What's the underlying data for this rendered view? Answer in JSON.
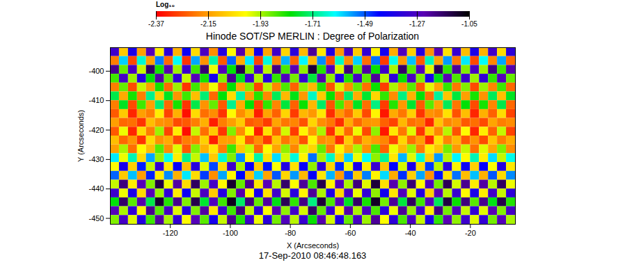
{
  "chart_data": {
    "type": "heatmap",
    "title": "Hinode SOT/SP MERLIN : Degree of Polarization",
    "x_label": "X (Arcseconds)",
    "y_label": "Y (Arcseconds)",
    "caption": "17-Sep-2010 08:46:48.163",
    "xlim": [
      -140,
      -5
    ],
    "ylim": [
      -452,
      -392
    ],
    "xticks": [
      -120,
      -100,
      -80,
      -60,
      -40,
      -20
    ],
    "yticks": [
      -450,
      -440,
      -430,
      -420,
      -410,
      -400
    ],
    "colorbar": {
      "label": "Log₁₀",
      "range": [
        -2.37,
        -1.05
      ],
      "ticks": [
        -2.37,
        -2.15,
        -1.93,
        -1.71,
        -1.49,
        -1.27,
        -1.05
      ]
    },
    "x": [
      -138.5,
      -135.5,
      -132.5,
      -129.5,
      -126.5,
      -123.5,
      -120.5,
      -117.5,
      -114.5,
      -111.5,
      -108.5,
      -105.5,
      -102.5,
      -99.5,
      -96.5,
      -93.5,
      -90.5,
      -87.5,
      -84.5,
      -81.5,
      -78.5,
      -75.5,
      -72.5,
      -69.5,
      -66.5,
      -63.5,
      -60.5,
      -57.5,
      -54.5,
      -51.5,
      -48.5,
      -45.5,
      -42.5,
      -39.5,
      -36.5,
      -33.5,
      -30.5,
      -27.5,
      -24.5,
      -21.5,
      -18.5,
      -15.5,
      -12.5,
      -9.5,
      -6.5
    ],
    "y": [
      -393.5,
      -396.5,
      -399.5,
      -402.5,
      -405.5,
      -408.5,
      -411.5,
      -414.5,
      -417.5,
      -420.5,
      -423.5,
      -426.5,
      -429.5,
      -432.5,
      -435.5,
      -438.5,
      -441.5,
      -444.5,
      -447.5,
      -450.5
    ],
    "values": [
      [
        -1.3,
        -2.08,
        -1.37,
        -2.15,
        -1.25,
        -2.02,
        -1.33,
        -2.12,
        -1.4,
        -2.05,
        -1.27,
        -2.18,
        -1.35,
        -2.0,
        -1.23,
        -2.1,
        -1.38,
        -2.14,
        -1.29,
        -2.06,
        -1.34,
        -2.11,
        -1.21,
        -2.03,
        -1.36,
        -2.16,
        -1.28,
        -2.08,
        -1.32,
        -2.01,
        -1.39,
        -2.13,
        -1.26,
        -2.07,
        -1.35,
        -2.17,
        -1.24,
        -2.04,
        -1.31,
        -2.1,
        -1.37,
        -2.12,
        -1.29,
        -2.05,
        -1.33
      ],
      [
        -2.2,
        -1.58,
        -2.27,
        -1.65,
        -2.15,
        -1.52,
        -2.23,
        -1.62,
        -2.3,
        -1.55,
        -2.17,
        -1.68,
        -2.25,
        -1.5,
        -2.13,
        -1.6,
        -2.28,
        -1.64,
        -2.19,
        -1.56,
        -2.24,
        -1.61,
        -2.11,
        -1.53,
        -2.26,
        -1.66,
        -2.18,
        -1.58,
        -2.22,
        -1.51,
        -2.29,
        -1.63,
        -2.16,
        -1.57,
        -2.25,
        -1.67,
        -2.14,
        -1.54,
        -2.21,
        -1.6,
        -2.27,
        -1.62,
        -2.19,
        -1.55,
        -2.23
      ],
      [
        -1.2,
        -1.88,
        -1.27,
        -1.95,
        -1.15,
        -1.82,
        -1.23,
        -1.92,
        -1.3,
        -1.85,
        -1.17,
        -1.98,
        -1.25,
        -1.8,
        -1.13,
        -1.9,
        -1.28,
        -1.94,
        -1.19,
        -1.86,
        -1.24,
        -1.91,
        -1.11,
        -1.83,
        -1.26,
        -1.96,
        -1.18,
        -1.88,
        -1.22,
        -1.81,
        -1.29,
        -1.93,
        -1.16,
        -1.87,
        -1.25,
        -1.97,
        -1.14,
        -1.84,
        -1.21,
        -1.9,
        -1.27,
        -1.92,
        -1.19,
        -1.85,
        -1.23
      ],
      [
        -1.85,
        -1.28,
        -1.92,
        -1.35,
        -1.8,
        -1.22,
        -1.88,
        -1.32,
        -1.95,
        -1.25,
        -1.82,
        -1.38,
        -1.9,
        -1.2,
        -1.78,
        -1.3,
        -1.93,
        -1.34,
        -1.84,
        -1.26,
        -1.89,
        -1.31,
        -1.76,
        -1.23,
        -1.91,
        -1.36,
        -1.83,
        -1.28,
        -1.87,
        -1.21,
        -1.94,
        -1.33,
        -1.81,
        -1.27,
        -1.9,
        -1.37,
        -1.79,
        -1.24,
        -1.86,
        -1.3,
        -1.92,
        -1.32,
        -1.84,
        -1.25,
        -1.88
      ],
      [
        -2.2,
        -1.88,
        -2.27,
        -1.95,
        -2.15,
        -1.82,
        -2.23,
        -1.92,
        -2.3,
        -1.85,
        -2.17,
        -1.98,
        -2.25,
        -1.8,
        -2.13,
        -1.9,
        -2.28,
        -1.94,
        -2.19,
        -1.86,
        -2.24,
        -1.91,
        -2.11,
        -1.83,
        -2.26,
        -1.96,
        -2.18,
        -1.88,
        -2.22,
        -1.81,
        -2.29,
        -1.93,
        -2.16,
        -1.87,
        -2.25,
        -1.97,
        -2.14,
        -1.84,
        -2.21,
        -1.9,
        -2.27,
        -1.92,
        -2.19,
        -1.85,
        -2.23
      ],
      [
        -1.75,
        -2.13,
        -1.82,
        -2.2,
        -1.7,
        -2.07,
        -1.78,
        -2.17,
        -1.85,
        -2.1,
        -1.72,
        -2.23,
        -1.8,
        -2.05,
        -1.68,
        -2.15,
        -1.83,
        -2.19,
        -1.74,
        -2.11,
        -1.79,
        -2.16,
        -1.66,
        -2.08,
        -1.81,
        -2.21,
        -1.73,
        -2.13,
        -1.77,
        -2.06,
        -1.84,
        -2.18,
        -1.71,
        -2.12,
        -1.8,
        -2.22,
        -1.69,
        -2.09,
        -1.76,
        -2.15,
        -1.82,
        -2.17,
        -1.74,
        -2.1,
        -1.78
      ],
      [
        -2.2,
        -1.78,
        -2.27,
        -1.85,
        -2.15,
        -1.72,
        -2.23,
        -1.82,
        -2.3,
        -1.75,
        -2.17,
        -1.88,
        -2.25,
        -1.7,
        -2.13,
        -1.8,
        -2.28,
        -1.84,
        -2.19,
        -1.76,
        -2.24,
        -1.81,
        -2.11,
        -1.73,
        -2.26,
        -1.86,
        -2.18,
        -1.78,
        -2.22,
        -1.71,
        -2.29,
        -1.83,
        -2.16,
        -1.77,
        -2.25,
        -1.87,
        -2.14,
        -1.74,
        -2.21,
        -1.8,
        -2.27,
        -1.82,
        -2.19,
        -1.75,
        -2.23
      ],
      [
        -2.25,
        -2.08,
        -2.32,
        -2.15,
        -2.2,
        -2.02,
        -2.28,
        -2.12,
        -2.35,
        -2.05,
        -2.22,
        -2.18,
        -2.3,
        -2.0,
        -2.18,
        -2.1,
        -2.33,
        -2.14,
        -2.24,
        -2.06,
        -2.29,
        -2.11,
        -2.16,
        -2.03,
        -2.31,
        -2.16,
        -2.23,
        -2.08,
        -2.27,
        -2.01,
        -2.34,
        -2.13,
        -2.21,
        -2.07,
        -2.3,
        -2.17,
        -2.19,
        -2.04,
        -2.26,
        -2.1,
        -2.32,
        -2.12,
        -2.24,
        -2.05,
        -2.28
      ],
      [
        -2.15,
        -2.23,
        -2.22,
        -2.3,
        -2.1,
        -2.17,
        -2.18,
        -2.27,
        -2.25,
        -2.2,
        -2.12,
        -2.33,
        -2.2,
        -2.15,
        -2.08,
        -2.25,
        -2.23,
        -2.29,
        -2.14,
        -2.21,
        -2.19,
        -2.26,
        -2.06,
        -2.18,
        -2.21,
        -2.31,
        -2.13,
        -2.23,
        -2.17,
        -2.16,
        -2.24,
        -2.28,
        -2.11,
        -2.22,
        -2.2,
        -2.32,
        -2.09,
        -2.19,
        -2.16,
        -2.25,
        -2.22,
        -2.27,
        -2.14,
        -2.2,
        -2.18
      ],
      [
        -2.25,
        -1.98,
        -2.32,
        -2.05,
        -2.2,
        -1.92,
        -2.28,
        -2.02,
        -2.35,
        -1.95,
        -2.22,
        -2.08,
        -2.3,
        -1.9,
        -2.18,
        -2.0,
        -2.33,
        -2.04,
        -2.24,
        -1.96,
        -2.29,
        -2.01,
        -2.16,
        -1.93,
        -2.31,
        -2.06,
        -2.23,
        -1.98,
        -2.27,
        -1.91,
        -2.34,
        -2.03,
        -2.21,
        -1.97,
        -2.3,
        -2.07,
        -2.19,
        -1.94,
        -2.26,
        -2.0,
        -2.32,
        -2.02,
        -2.24,
        -1.95,
        -2.28
      ],
      [
        -2.1,
        -2.23,
        -2.17,
        -2.3,
        -2.05,
        -2.17,
        -2.13,
        -2.27,
        -2.2,
        -2.2,
        -2.07,
        -2.33,
        -2.15,
        -2.15,
        -2.03,
        -2.25,
        -2.18,
        -2.29,
        -2.09,
        -2.21,
        -2.14,
        -2.26,
        -2.01,
        -2.18,
        -2.16,
        -2.31,
        -2.08,
        -2.23,
        -2.12,
        -2.16,
        -2.19,
        -2.28,
        -2.06,
        -2.22,
        -2.15,
        -2.32,
        -2.04,
        -2.19,
        -2.11,
        -2.25,
        -2.17,
        -2.27,
        -2.09,
        -2.2,
        -2.13
      ],
      [
        -2.15,
        -1.93,
        -2.22,
        -2.0,
        -2.1,
        -1.87,
        -2.18,
        -1.97,
        -2.25,
        -1.9,
        -2.12,
        -2.03,
        -2.2,
        -1.85,
        -2.08,
        -1.95,
        -2.23,
        -1.99,
        -2.14,
        -1.91,
        -2.19,
        -1.96,
        -2.06,
        -1.88,
        -2.21,
        -2.01,
        -2.13,
        -1.93,
        -2.17,
        -1.86,
        -2.24,
        -1.98,
        -2.11,
        -1.92,
        -2.2,
        -2.02,
        -2.09,
        -1.89,
        -2.16,
        -1.95,
        -2.22,
        -1.97,
        -2.14,
        -1.9,
        -2.18
      ],
      [
        -1.6,
        -1.98,
        -1.67,
        -2.05,
        -1.55,
        -1.92,
        -1.63,
        -2.02,
        -1.7,
        -1.95,
        -1.57,
        -2.08,
        -1.65,
        -1.9,
        -1.53,
        -2.0,
        -1.68,
        -2.04,
        -1.59,
        -1.96,
        -1.64,
        -2.01,
        -1.51,
        -1.93,
        -1.66,
        -2.06,
        -1.58,
        -1.98,
        -1.62,
        -1.91,
        -1.69,
        -2.03,
        -1.56,
        -1.97,
        -1.65,
        -2.07,
        -1.54,
        -1.94,
        -1.61,
        -2.0,
        -1.67,
        -2.02,
        -1.59,
        -1.95,
        -1.63
      ],
      [
        -2.0,
        -1.38,
        -2.07,
        -1.45,
        -1.95,
        -1.32,
        -2.03,
        -1.42,
        -2.1,
        -1.35,
        -1.97,
        -1.48,
        -2.05,
        -1.3,
        -1.93,
        -1.4,
        -2.08,
        -1.44,
        -1.99,
        -1.36,
        -2.04,
        -1.41,
        -1.91,
        -1.33,
        -2.06,
        -1.46,
        -1.98,
        -1.38,
        -2.02,
        -1.31,
        -2.09,
        -1.43,
        -1.96,
        -1.37,
        -2.05,
        -1.47,
        -1.94,
        -1.34,
        -2.01,
        -1.4,
        -2.07,
        -1.42,
        -1.99,
        -1.35,
        -2.03
      ],
      [
        -1.5,
        -2.08,
        -1.57,
        -2.15,
        -1.45,
        -2.02,
        -1.53,
        -2.12,
        -1.6,
        -2.05,
        -1.47,
        -2.18,
        -1.55,
        -2.0,
        -1.43,
        -2.1,
        -1.58,
        -2.14,
        -1.49,
        -2.06,
        -1.54,
        -2.11,
        -1.41,
        -2.03,
        -1.56,
        -2.16,
        -1.48,
        -2.08,
        -1.52,
        -2.01,
        -1.59,
        -2.13,
        -1.46,
        -2.07,
        -1.55,
        -2.17,
        -1.44,
        -2.04,
        -1.51,
        -2.1,
        -1.57,
        -2.12,
        -1.49,
        -2.05,
        -1.53
      ],
      [
        -1.95,
        -1.18,
        -2.02,
        -1.25,
        -1.9,
        -1.12,
        -1.98,
        -1.22,
        -2.05,
        -1.15,
        -1.92,
        -1.28,
        -2.0,
        -1.1,
        -1.88,
        -1.2,
        -2.03,
        -1.24,
        -1.94,
        -1.16,
        -1.99,
        -1.21,
        -1.86,
        -1.13,
        -2.01,
        -1.26,
        -1.93,
        -1.18,
        -1.97,
        -1.11,
        -2.04,
        -1.23,
        -1.91,
        -1.17,
        -2.0,
        -1.27,
        -1.89,
        -1.14,
        -1.96,
        -1.2,
        -2.02,
        -1.22,
        -1.94,
        -1.15,
        -1.98
      ],
      [
        -1.3,
        -1.98,
        -1.37,
        -2.05,
        -1.25,
        -1.92,
        -1.33,
        -2.02,
        -1.4,
        -1.95,
        -1.27,
        -2.08,
        -1.35,
        -1.9,
        -1.23,
        -2.0,
        -1.38,
        -2.04,
        -1.29,
        -1.96,
        -1.34,
        -2.01,
        -1.21,
        -1.93,
        -1.36,
        -2.06,
        -1.28,
        -1.98,
        -1.32,
        -1.91,
        -1.39,
        -2.03,
        -1.26,
        -1.97,
        -1.35,
        -2.07,
        -1.24,
        -1.94,
        -1.31,
        -2.0,
        -1.37,
        -2.02,
        -1.29,
        -1.95,
        -1.33
      ],
      [
        -1.8,
        -1.16,
        -1.87,
        -1.23,
        -1.75,
        -1.1,
        -1.83,
        -1.2,
        -1.9,
        -1.13,
        -1.77,
        -1.26,
        -1.85,
        -1.08,
        -1.73,
        -1.18,
        -1.88,
        -1.22,
        -1.79,
        -1.14,
        -1.84,
        -1.19,
        -1.71,
        -1.11,
        -1.86,
        -1.24,
        -1.78,
        -1.16,
        -1.82,
        -1.09,
        -1.89,
        -1.21,
        -1.76,
        -1.15,
        -1.85,
        -1.25,
        -1.74,
        -1.12,
        -1.81,
        -1.18,
        -1.87,
        -1.2,
        -1.79,
        -1.13,
        -1.83
      ],
      [
        -1.25,
        -1.93,
        -1.32,
        -2.0,
        -1.2,
        -1.87,
        -1.28,
        -1.97,
        -1.35,
        -1.9,
        -1.22,
        -2.03,
        -1.3,
        -1.85,
        -1.18,
        -1.95,
        -1.33,
        -1.99,
        -1.24,
        -1.91,
        -1.29,
        -1.96,
        -1.16,
        -1.88,
        -1.31,
        -2.01,
        -1.23,
        -1.93,
        -1.27,
        -1.86,
        -1.34,
        -1.98,
        -1.21,
        -1.92,
        -1.3,
        -2.02,
        -1.19,
        -1.89,
        -1.26,
        -1.95,
        -1.32,
        -1.97,
        -1.24,
        -1.9,
        -1.28
      ],
      [
        -1.9,
        -1.28,
        -1.97,
        -1.35,
        -1.85,
        -1.22,
        -1.93,
        -1.32,
        -2.0,
        -1.25,
        -1.87,
        -1.38,
        -1.95,
        -1.2,
        -1.83,
        -1.3,
        -1.98,
        -1.34,
        -1.89,
        -1.26,
        -1.94,
        -1.31,
        -1.81,
        -1.23,
        -1.96,
        -1.36,
        -1.88,
        -1.28,
        -1.92,
        -1.21,
        -1.99,
        -1.33,
        -1.86,
        -1.27,
        -1.95,
        -1.37,
        -1.84,
        -1.24,
        -1.91,
        -1.3,
        -1.97,
        -1.32,
        -1.89,
        -1.25,
        -1.93
      ]
    ]
  }
}
